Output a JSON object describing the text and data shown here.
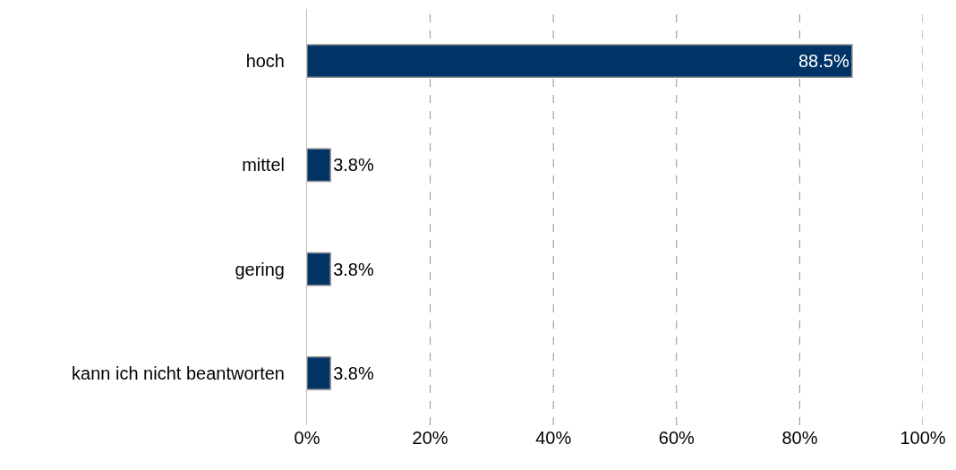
{
  "chart_data": {
    "type": "bar",
    "orientation": "horizontal",
    "categories": [
      "hoch",
      "mittel",
      "gering",
      "kann ich nicht beantworten"
    ],
    "values": [
      88.5,
      3.8,
      3.8,
      3.8
    ],
    "value_labels": [
      "88.5%",
      "3.8%",
      "3.8%",
      "3.8%"
    ],
    "color": "#003366",
    "xlim": [
      0,
      100
    ],
    "xticks": [
      {
        "value": 0,
        "label": "0%"
      },
      {
        "value": 20,
        "label": "20%"
      },
      {
        "value": 40,
        "label": "40%"
      },
      {
        "value": 60,
        "label": "60%"
      },
      {
        "value": 80,
        "label": "80%"
      },
      {
        "value": 100,
        "label": "100%"
      }
    ],
    "grid": "x"
  }
}
